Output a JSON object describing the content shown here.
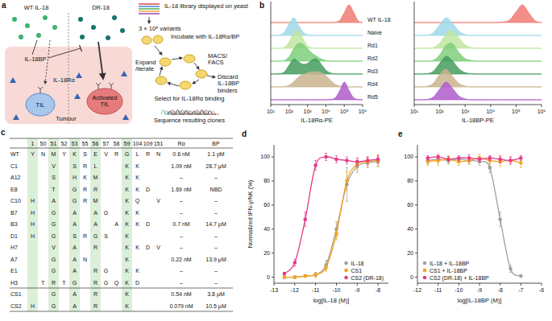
{
  "panel_a": {
    "label": "a",
    "wt": "WT IL-18",
    "dr": "DR-18",
    "bp": "IL-18BP",
    "ra": "IL-18Rα",
    "til": "TIL",
    "activated": "Activated TIL",
    "tumour": "Tumour",
    "library": "IL-18 library displayed on yeast",
    "variants": "3 × 10⁸ variants",
    "incubate": "Incubate with IL-18Rα/BP",
    "macs": "MACS/ FACS",
    "expand": "Expand /iterate",
    "discard": "Discard IL-18BP binders",
    "select": "Select for IL-18Rα binding",
    "sequence": "Sequence resulting clones"
  },
  "panel_c": {
    "label": "c",
    "positions": [
      1,
      50,
      51,
      52,
      53,
      55,
      56,
      57,
      58,
      59,
      104,
      109,
      151
    ],
    "affinity_heads": [
      "Rα",
      "BP"
    ],
    "rows": [
      {
        "name": "WT",
        "residues": [
          "Y",
          "N",
          "M",
          "Y",
          "K",
          "S",
          "E",
          "V",
          "R",
          "G",
          "L",
          "R",
          "N"
        ],
        "ra": "0.6 nM",
        "bp": "1.1 pM"
      },
      {
        "name": "C1",
        "residues": [
          null,
          null,
          "V",
          null,
          "S",
          "R",
          "L",
          null,
          null,
          "K",
          "K",
          null,
          null
        ],
        "ra": "1.09 nM",
        "bp": "28.7 μM"
      },
      {
        "name": "A12",
        "residues": [
          null,
          null,
          "S",
          null,
          "H",
          "K",
          "M",
          null,
          null,
          "K",
          "K",
          null,
          null
        ],
        "ra": "–",
        "bp": "–"
      },
      {
        "name": "E8",
        "residues": [
          null,
          null,
          "T",
          null,
          "G",
          "R",
          "R",
          null,
          null,
          "K",
          "K",
          "D",
          null
        ],
        "ra": "1.69 nM",
        "bp": "NBD"
      },
      {
        "name": "C10",
        "residues": [
          "H",
          null,
          "A",
          null,
          "G",
          "R",
          "M",
          null,
          null,
          "K",
          "Q",
          null,
          "V"
        ],
        "ra": "–",
        "bp": "–"
      },
      {
        "name": "B7",
        "residues": [
          "H",
          null,
          "G",
          null,
          "A",
          null,
          "A",
          "G",
          null,
          "K",
          "K",
          null,
          null
        ],
        "ra": "–",
        "bp": "–"
      },
      {
        "name": "B3",
        "residues": [
          "H",
          null,
          "G",
          null,
          "A",
          null,
          "A",
          null,
          "A",
          "K",
          "K",
          "D",
          null
        ],
        "ra": "0.7 nM",
        "bp": "14.7 μM"
      },
      {
        "name": "D1",
        "residues": [
          "H",
          null,
          "G",
          null,
          "S",
          "R",
          "G",
          "S",
          null,
          "K",
          null,
          null,
          null
        ],
        "ra": "–",
        "bp": "–"
      },
      {
        "name": "H7",
        "residues": [
          null,
          null,
          "V",
          null,
          "A",
          null,
          "R",
          null,
          null,
          "K",
          "K",
          "D",
          "V"
        ],
        "ra": "–",
        "bp": "–"
      },
      {
        "name": "A7",
        "residues": [
          null,
          null,
          "G",
          null,
          "A",
          "N",
          null,
          null,
          null,
          "K",
          null,
          null,
          null
        ],
        "ra": "0.22 nM",
        "bp": "13.9 μM"
      },
      {
        "name": "E1",
        "residues": [
          null,
          null,
          "G",
          null,
          "A",
          null,
          "R",
          "G",
          null,
          "K",
          "K",
          null,
          null
        ],
        "ra": "–",
        "bp": "–"
      },
      {
        "name": "H3",
        "residues": [
          null,
          "T",
          "R",
          "T",
          "G",
          null,
          "R",
          "G",
          "Q",
          "K",
          "D",
          null,
          null
        ],
        "ra": "–",
        "bp": "–"
      },
      {
        "name": "CS1",
        "residues": [
          null,
          null,
          "G",
          null,
          "A",
          null,
          "R",
          null,
          null,
          "K",
          null,
          null,
          null
        ],
        "ra": "0.54 nM",
        "bp": "3.8 μM"
      },
      {
        "name": "CS2",
        "residues": [
          "H",
          null,
          "G",
          null,
          "A",
          null,
          "R",
          null,
          null,
          "K",
          null,
          null,
          null
        ],
        "ra": "0.079 nM",
        "bp": "10.5 μM"
      }
    ]
  },
  "chart_data": [
    {
      "type": "ridgeline",
      "panel_label": "b",
      "x": [
        1,
        1.25,
        1.5,
        1.75,
        2,
        2.25,
        2.5,
        2.75,
        3,
        3.25,
        3.5,
        3.75,
        4,
        4.25,
        4.5,
        4.75,
        5,
        5.25,
        5.5,
        5.75,
        6
      ],
      "xlim": [
        1,
        6
      ],
      "xticks": [
        {
          "value": 1,
          "label": "10¹"
        },
        {
          "value": 2,
          "label": "10²"
        },
        {
          "value": 3,
          "label": "10³"
        },
        {
          "value": 4,
          "label": "10⁴"
        },
        {
          "value": 5,
          "label": "10⁵"
        },
        {
          "value": 6,
          "label": "10⁶"
        }
      ],
      "xlabels": [
        "IL-18Rα-PE",
        "IL-18BP-PE"
      ],
      "series": [
        {
          "name": "WT IL-18",
          "color": "#f07b74",
          "values": [
            0,
            0,
            0,
            0,
            0,
            0,
            0,
            0,
            0,
            0,
            0,
            0,
            0,
            0,
            0.02,
            0.12,
            0.55,
            1,
            0.6,
            0.1,
            0
          ],
          "values_bp": [
            0,
            0,
            0,
            0,
            0,
            0,
            0,
            0,
            0,
            0,
            0,
            0,
            0,
            0,
            0.03,
            0.15,
            0.6,
            1,
            0.55,
            0.1,
            0
          ]
        },
        {
          "name": "Naive",
          "color": "#9fd8ea",
          "values": [
            0,
            0,
            0.03,
            0.2,
            0.65,
            1,
            0.6,
            0.2,
            0.04,
            0,
            0,
            0,
            0,
            0,
            0,
            0,
            0,
            0,
            0,
            0,
            0
          ],
          "values_bp": [
            0,
            0,
            0.02,
            0.15,
            0.6,
            1,
            0.7,
            0.25,
            0.05,
            0,
            0,
            0,
            0,
            0,
            0,
            0,
            0,
            0,
            0,
            0,
            0
          ]
        },
        {
          "name": "Rd1",
          "color": "#bfe6a0",
          "values": [
            0,
            0,
            0,
            0.06,
            0.35,
            0.85,
            1,
            0.55,
            0.15,
            0.03,
            0,
            0,
            0,
            0,
            0,
            0,
            0,
            0,
            0,
            0,
            0
          ],
          "values_bp": [
            0,
            0,
            0,
            0.05,
            0.3,
            0.8,
            1,
            0.6,
            0.2,
            0.04,
            0,
            0,
            0,
            0,
            0,
            0,
            0,
            0,
            0,
            0,
            0
          ]
        },
        {
          "name": "Rd2",
          "color": "#7fcf7c",
          "values": [
            0,
            0,
            0,
            0.04,
            0.25,
            0.7,
            1,
            0.95,
            0.7,
            0.45,
            0.28,
            0.12,
            0.04,
            0,
            0,
            0,
            0,
            0,
            0,
            0,
            0
          ],
          "values_bp": [
            0,
            0,
            0,
            0.05,
            0.35,
            0.9,
            1,
            0.5,
            0.15,
            0.04,
            0,
            0,
            0,
            0,
            0,
            0,
            0,
            0,
            0,
            0,
            0
          ]
        },
        {
          "name": "Rd3",
          "color": "#449c5e",
          "values": [
            0,
            0,
            0.02,
            0.12,
            0.5,
            0.85,
            0.7,
            0.55,
            0.6,
            0.8,
            0.85,
            0.55,
            0.22,
            0.06,
            0,
            0,
            0,
            0,
            0,
            0,
            0
          ],
          "values_bp": [
            0,
            0,
            0.02,
            0.15,
            0.6,
            1,
            0.75,
            0.3,
            0.08,
            0.02,
            0,
            0,
            0,
            0,
            0,
            0,
            0,
            0,
            0,
            0,
            0
          ]
        },
        {
          "name": "Rd4",
          "color": "#c9b48f",
          "values": [
            0,
            0,
            0,
            0.02,
            0.1,
            0.3,
            0.55,
            0.7,
            0.8,
            0.85,
            0.85,
            0.8,
            0.62,
            0.38,
            0.15,
            0.05,
            0,
            0,
            0,
            0,
            0
          ],
          "values_bp": [
            0,
            0,
            0.03,
            0.2,
            0.7,
            1,
            0.6,
            0.2,
            0.05,
            0,
            0,
            0,
            0,
            0,
            0,
            0,
            0,
            0,
            0,
            0,
            0
          ]
        },
        {
          "name": "Rd5",
          "color": "#b05ccb",
          "values": [
            0,
            0,
            0,
            0,
            0,
            0,
            0,
            0,
            0,
            0,
            0,
            0,
            0,
            0.02,
            0.1,
            0.5,
            1,
            0.55,
            0.12,
            0.02,
            0
          ],
          "values_bp": [
            0,
            0,
            0.02,
            0.15,
            0.6,
            1,
            0.65,
            0.22,
            0.05,
            0,
            0,
            0,
            0,
            0,
            0,
            0,
            0,
            0,
            0,
            0,
            0
          ]
        }
      ]
    },
    {
      "type": "line",
      "panel_label": "d",
      "marker": "circle",
      "legend": "lower right",
      "x_label": "log[IL-18 (M)]",
      "y_label": "Normalized IFN-γ/NK (%)",
      "x": [
        -12.5,
        -12,
        -11.5,
        -11,
        -10.5,
        -10,
        -9.5,
        -9,
        -8.5,
        -8
      ],
      "xlim": [
        -13,
        -7.5
      ],
      "xticks": [
        -13,
        -12,
        -11,
        -10,
        -9,
        -8
      ],
      "ylim": [
        -5,
        110
      ],
      "yticks": [
        0,
        20,
        40,
        60,
        80,
        100
      ],
      "series": [
        {
          "name": "IL-18",
          "color": "#a0a0a0",
          "values": [
            0,
            0,
            1,
            2,
            10,
            40,
            77,
            92,
            95,
            96
          ],
          "errors": [
            1,
            1,
            1,
            2,
            4,
            6,
            14,
            5,
            4,
            4
          ]
        },
        {
          "name": "CS1",
          "color": "#f5a31a",
          "values": [
            0,
            0,
            1,
            2,
            8,
            36,
            80,
            94,
            96,
            97
          ],
          "errors": [
            1,
            1,
            1,
            2,
            3,
            5,
            8,
            5,
            4,
            5
          ]
        },
        {
          "name": "CS2 (DR-18)",
          "color": "#e6398a",
          "values": [
            3,
            12,
            48,
            93,
            100,
            98,
            97,
            96,
            97,
            98
          ],
          "errors": [
            1,
            3,
            6,
            4,
            3,
            3,
            3,
            3,
            3,
            3
          ]
        }
      ]
    },
    {
      "type": "line",
      "panel_label": "e",
      "marker": "circle",
      "legend": "lower left",
      "x_label": "log[IL-18BP (M)]",
      "x": [
        -11.5,
        -11,
        -10.5,
        -10,
        -9.5,
        -9,
        -8.5,
        -8,
        -7.5,
        -7
      ],
      "xlim": [
        -12,
        -6
      ],
      "xticks": [
        -12,
        -11,
        -10,
        -9,
        -8,
        -7,
        -6
      ],
      "ylim": [
        -5,
        110
      ],
      "yticks": [
        0,
        20,
        40,
        60,
        80,
        100
      ],
      "series": [
        {
          "name": "IL-18 + IL-18BP",
          "color": "#a0a0a0",
          "values": [
            97,
            98,
            97,
            98,
            97,
            96,
            91,
            48,
            7,
            1
          ],
          "errors": [
            3,
            3,
            3,
            2,
            3,
            3,
            4,
            6,
            3,
            1
          ]
        },
        {
          "name": "CS1 + IL-18BP",
          "color": "#f5a31a",
          "values": [
            96,
            97,
            98,
            96,
            97,
            99,
            97,
            96,
            97,
            95
          ],
          "errors": [
            3,
            4,
            3,
            3,
            3,
            3,
            3,
            4,
            3,
            4
          ]
        },
        {
          "name": "CS2 (DR-18) + IL-18BP",
          "color": "#e6398a",
          "values": [
            99,
            100,
            98,
            99,
            99,
            98,
            99,
            98,
            97,
            99
          ],
          "errors": [
            2,
            2,
            2,
            2,
            3,
            2,
            2,
            3,
            3,
            2
          ]
        }
      ]
    }
  ]
}
